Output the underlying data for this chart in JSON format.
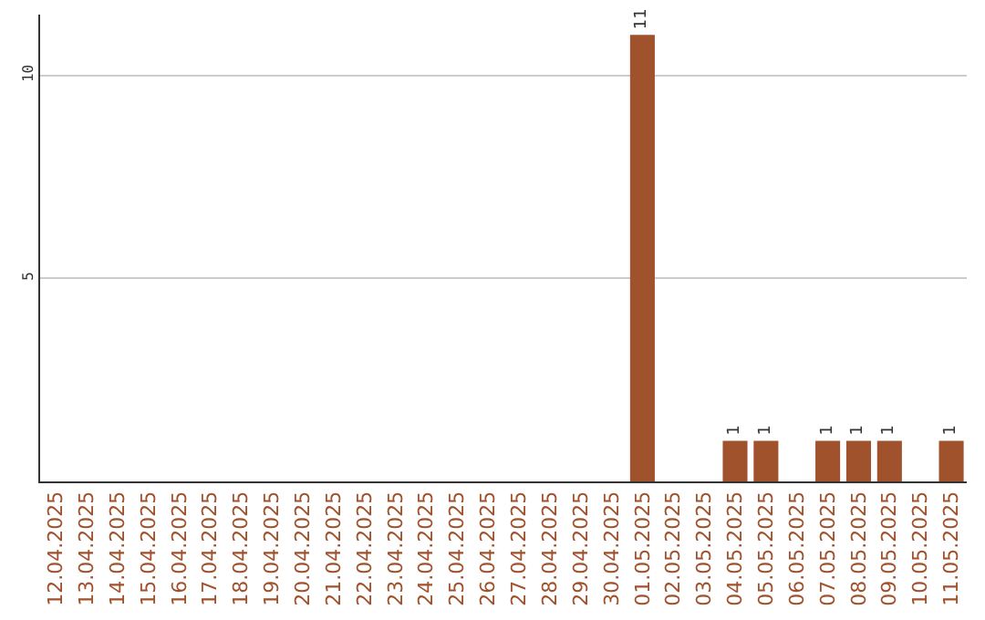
{
  "chart_data": {
    "type": "bar",
    "categories": [
      "12.04.2025",
      "13.04.2025",
      "14.04.2025",
      "15.04.2025",
      "16.04.2025",
      "17.04.2025",
      "18.04.2025",
      "19.04.2025",
      "20.04.2025",
      "21.04.2025",
      "22.04.2025",
      "23.04.2025",
      "24.04.2025",
      "25.04.2025",
      "26.04.2025",
      "27.04.2025",
      "28.04.2025",
      "29.04.2025",
      "30.04.2025",
      "01.05.2025",
      "02.05.2025",
      "03.05.2025",
      "04.05.2025",
      "05.05.2025",
      "06.05.2025",
      "07.05.2025",
      "08.05.2025",
      "09.05.2025",
      "10.05.2025",
      "11.05.2025"
    ],
    "values": [
      0,
      0,
      0,
      0,
      0,
      0,
      0,
      0,
      0,
      0,
      0,
      0,
      0,
      0,
      0,
      0,
      0,
      0,
      0,
      11,
      0,
      0,
      1,
      1,
      0,
      1,
      1,
      1,
      0,
      1
    ],
    "value_labels": [
      null,
      null,
      null,
      null,
      null,
      null,
      null,
      null,
      null,
      null,
      null,
      null,
      null,
      null,
      null,
      null,
      null,
      null,
      null,
      "11",
      null,
      null,
      "1",
      "1",
      null,
      "1",
      "1",
      "1",
      null,
      "1"
    ],
    "color": "#a0522d",
    "ylim": [
      0,
      11.5
    ],
    "yticks": [
      5,
      10
    ],
    "grid": "y",
    "legend": false
  }
}
